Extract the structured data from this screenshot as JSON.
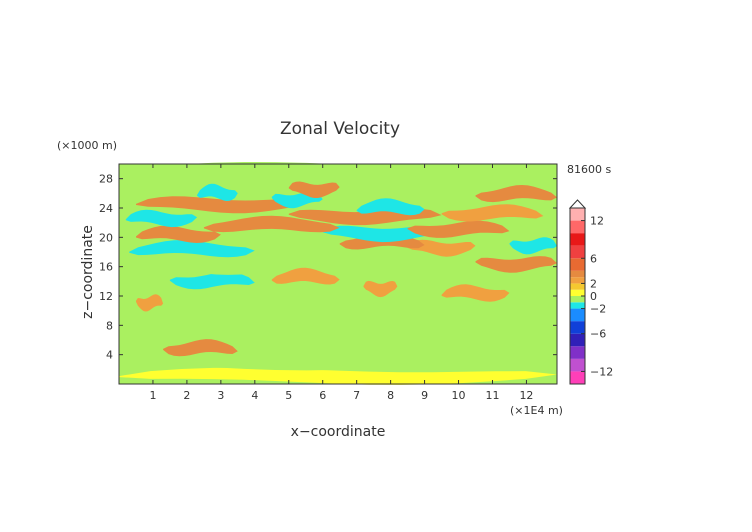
{
  "chart_data": {
    "type": "heatmap",
    "title": "Zonal Velocity",
    "xlabel": "x−coordinate",
    "ylabel": "z−coordinate",
    "x_unit": "(×1E4 m)",
    "y_unit": "(×1000 m)",
    "time_label": "81600 s",
    "xlim": [
      0,
      12.9
    ],
    "ylim": [
      0,
      30
    ],
    "x_ticks": [
      "1",
      "2",
      "3",
      "4",
      "5",
      "6",
      "7",
      "8",
      "9",
      "10",
      "11",
      "12"
    ],
    "y_ticks": [
      "4",
      "8",
      "12",
      "16",
      "20",
      "24",
      "28"
    ],
    "colorbar": {
      "tick_labels": [
        "12",
        "6",
        "2",
        "0",
        "−2",
        "−6",
        "−12"
      ],
      "levels": [
        -14,
        -12,
        -10,
        -8,
        -6,
        -4,
        -2,
        -1,
        0,
        1,
        2,
        3,
        4,
        6,
        8,
        10,
        12,
        14
      ],
      "colors": [
        "#ff3fb8",
        "#c050d0",
        "#8030c8",
        "#3020b8",
        "#1040d8",
        "#1a8cff",
        "#1ee6e6",
        "#aaf060",
        "#ffff30",
        "#f4c830",
        "#f0a040",
        "#e58a40",
        "#e86a32",
        "#f04040",
        "#e81818",
        "#ff6868",
        "#ffb0b0"
      ],
      "overflow": "top"
    },
    "bands": [
      {
        "z": 1.0,
        "x": [
          0,
          13
        ],
        "level": 8
      },
      {
        "z": 3.0,
        "x": [
          0,
          13
        ],
        "level": 7
      },
      {
        "z": 4.8,
        "x": [
          1.3,
          3.5
        ],
        "level": 11
      },
      {
        "z": 5.5,
        "x": [
          5.5,
          8.5
        ],
        "level": 7
      },
      {
        "z": 8.0,
        "x": [
          0,
          13
        ],
        "level": 7
      },
      {
        "z": 11.0,
        "x": [
          0.5,
          1.3
        ],
        "level": 10
      },
      {
        "z": 11.5,
        "x": [
          6.0,
          12.0
        ],
        "level": 7
      },
      {
        "z": 12.3,
        "x": [
          9.5,
          11.5
        ],
        "level": 10
      },
      {
        "z": 13.0,
        "x": [
          7.2,
          8.2
        ],
        "level": 10
      },
      {
        "z": 14.0,
        "x": [
          1.5,
          4.0
        ],
        "level": 6
      },
      {
        "z": 14.5,
        "x": [
          4.5,
          6.5
        ],
        "level": 10
      },
      {
        "z": 16.0,
        "x": [
          0,
          5.0
        ],
        "level": 7
      },
      {
        "z": 16.3,
        "x": [
          10.5,
          13.0
        ],
        "level": 11
      },
      {
        "z": 17.5,
        "x": [
          4.0,
          9.0
        ],
        "level": 7
      },
      {
        "z": 18.3,
        "x": [
          0.3,
          4.0
        ],
        "level": 6
      },
      {
        "z": 18.5,
        "x": [
          8.5,
          10.5
        ],
        "level": 10
      },
      {
        "z": 18.8,
        "x": [
          11.5,
          13.0
        ],
        "level": 6
      },
      {
        "z": 19.3,
        "x": [
          6.5,
          9.0
        ],
        "level": 11
      },
      {
        "z": 20.3,
        "x": [
          0.5,
          3.0
        ],
        "level": 11
      },
      {
        "z": 20.5,
        "x": [
          6.0,
          9.5
        ],
        "level": 6
      },
      {
        "z": 21.0,
        "x": [
          8.5,
          11.5
        ],
        "level": 11
      },
      {
        "z": 21.6,
        "x": [
          2.5,
          6.5
        ],
        "level": 11
      },
      {
        "z": 22.5,
        "x": [
          0.2,
          2.3
        ],
        "level": 6
      },
      {
        "z": 22.8,
        "x": [
          5.0,
          9.5
        ],
        "level": 11
      },
      {
        "z": 23.2,
        "x": [
          9.5,
          12.5
        ],
        "level": 10
      },
      {
        "z": 24.0,
        "x": [
          7.0,
          9.0
        ],
        "level": 6
      },
      {
        "z": 24.4,
        "x": [
          0.5,
          5.5
        ],
        "level": 11
      },
      {
        "z": 25.1,
        "x": [
          4.5,
          6.0
        ],
        "level": 6
      },
      {
        "z": 25.8,
        "x": [
          10.5,
          12.9
        ],
        "level": 11
      },
      {
        "z": 26.0,
        "x": [
          2.3,
          3.5
        ],
        "level": 6
      },
      {
        "z": 26.5,
        "x": [
          5.0,
          6.5
        ],
        "level": 11
      },
      {
        "z": 27.0,
        "x": [
          6.7,
          8.5
        ],
        "level": 7
      },
      {
        "z": 27.8,
        "x": [
          0.2,
          1.5
        ],
        "level": 7
      },
      {
        "z": 29.0,
        "x": [
          0,
          13
        ],
        "level": 7
      }
    ]
  }
}
